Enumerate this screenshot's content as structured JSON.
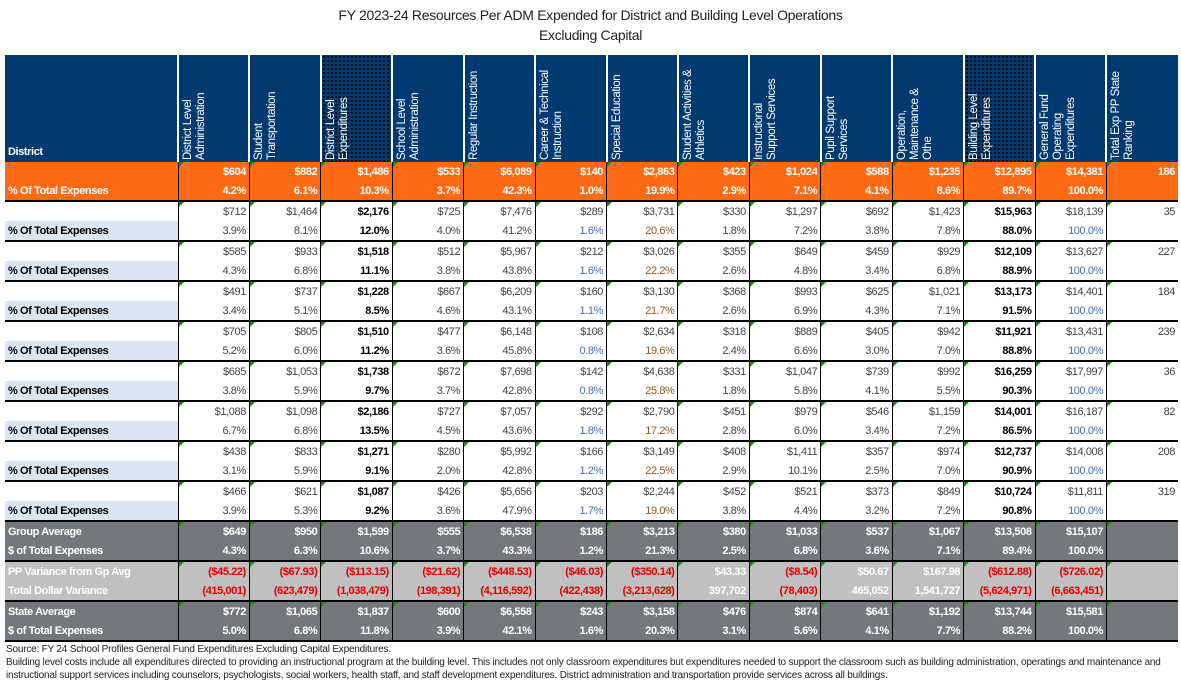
{
  "title": {
    "line1": "FY 2023-24 Resources Per ADM Expended for District and  Building Level Operations",
    "line2": "Excluding Capital"
  },
  "columns": [
    "District",
    "District Level Administration",
    "Student Transportation",
    "District Level Expenditures",
    "School Level Administration",
    "Regular Instruction",
    "Career & Technical Instruction",
    "Special Education",
    "Student Activities & Athletics",
    "Instructional Support Services",
    "Pupil Support Services",
    "Operation, Maintenance & Othe",
    "Building Level Expenditures",
    "General Fund Operating Expenditures",
    "Total Exp PP State Ranking"
  ],
  "highlight_row": {
    "label": "",
    "pct_label": "% Of Total Expenses",
    "values": [
      "$604",
      "$882",
      "$1,486",
      "$533",
      "$6,089",
      "$140",
      "$2,863",
      "$423",
      "$1,024",
      "$588",
      "$1,235",
      "$12,895",
      "$14,381"
    ],
    "pcts": [
      "4.2%",
      "6.1%",
      "10.3%",
      "3.7%",
      "42.3%",
      "1.0%",
      "19.9%",
      "2.9%",
      "7.1%",
      "4.1%",
      "8.6%",
      "89.7%",
      "100.0%"
    ],
    "rank": "186"
  },
  "district_rows": [
    {
      "pct_label": "% Of Total Expenses",
      "values": [
        "$712",
        "$1,464",
        "$2,176",
        "$725",
        "$7,476",
        "$289",
        "$3,731",
        "$330",
        "$1,297",
        "$692",
        "$1,423",
        "$15,963",
        "$18,139"
      ],
      "pcts": [
        "3.9%",
        "8.1%",
        "12.0%",
        "4.0%",
        "41.2%",
        "1.6%",
        "20.6%",
        "1.8%",
        "7.2%",
        "3.8%",
        "7.8%",
        "88.0%",
        "100.0%"
      ],
      "rank": "35"
    },
    {
      "pct_label": "% Of Total Expenses",
      "values": [
        "$585",
        "$933",
        "$1,518",
        "$512",
        "$5,967",
        "$212",
        "$3,026",
        "$355",
        "$649",
        "$459",
        "$929",
        "$12,109",
        "$13,627"
      ],
      "pcts": [
        "4.3%",
        "6.8%",
        "11.1%",
        "3.8%",
        "43.8%",
        "1.6%",
        "22.2%",
        "2.6%",
        "4.8%",
        "3.4%",
        "6.8%",
        "88.9%",
        "100.0%"
      ],
      "rank": "227"
    },
    {
      "pct_label": "% Of Total Expenses",
      "values": [
        "$491",
        "$737",
        "$1,228",
        "$667",
        "$6,209",
        "$160",
        "$3,130",
        "$368",
        "$993",
        "$625",
        "$1,021",
        "$13,173",
        "$14,401"
      ],
      "pcts": [
        "3.4%",
        "5.1%",
        "8.5%",
        "4.6%",
        "43.1%",
        "1.1%",
        "21.7%",
        "2.6%",
        "6.9%",
        "4.3%",
        "7.1%",
        "91.5%",
        "100.0%"
      ],
      "rank": "184"
    },
    {
      "pct_label": "% Of Total Expenses",
      "values": [
        "$705",
        "$805",
        "$1,510",
        "$477",
        "$6,148",
        "$108",
        "$2,634",
        "$318",
        "$889",
        "$405",
        "$942",
        "$11,921",
        "$13,431"
      ],
      "pcts": [
        "5.2%",
        "6.0%",
        "11.2%",
        "3.6%",
        "45.8%",
        "0.8%",
        "19.6%",
        "2.4%",
        "6.6%",
        "3.0%",
        "7.0%",
        "88.8%",
        "100.0%"
      ],
      "rank": "239"
    },
    {
      "pct_label": "% Of Total Expenses",
      "values": [
        "$685",
        "$1,053",
        "$1,738",
        "$672",
        "$7,698",
        "$142",
        "$4,638",
        "$331",
        "$1,047",
        "$739",
        "$992",
        "$16,259",
        "$17,997"
      ],
      "pcts": [
        "3.8%",
        "5.9%",
        "9.7%",
        "3.7%",
        "42.8%",
        "0.8%",
        "25.8%",
        "1.8%",
        "5.8%",
        "4.1%",
        "5.5%",
        "90.3%",
        "100.0%"
      ],
      "rank": "36"
    },
    {
      "pct_label": "% Of Total Expenses",
      "values": [
        "$1,088",
        "$1,098",
        "$2,186",
        "$727",
        "$7,057",
        "$292",
        "$2,790",
        "$451",
        "$979",
        "$546",
        "$1,159",
        "$14,001",
        "$16,187"
      ],
      "pcts": [
        "6.7%",
        "6.8%",
        "13.5%",
        "4.5%",
        "43.6%",
        "1.8%",
        "17.2%",
        "2.8%",
        "6.0%",
        "3.4%",
        "7.2%",
        "86.5%",
        "100.0%"
      ],
      "rank": "82"
    },
    {
      "pct_label": "% Of Total Expenses",
      "values": [
        "$438",
        "$833",
        "$1,271",
        "$280",
        "$5,992",
        "$166",
        "$3,149",
        "$408",
        "$1,411",
        "$357",
        "$974",
        "$12,737",
        "$14,008"
      ],
      "pcts": [
        "3.1%",
        "5.9%",
        "9.1%",
        "2.0%",
        "42.8%",
        "1.2%",
        "22.5%",
        "2.9%",
        "10.1%",
        "2.5%",
        "7.0%",
        "90.9%",
        "100.0%"
      ],
      "rank": "208"
    },
    {
      "pct_label": "% Of Total Expenses",
      "values": [
        "$466",
        "$621",
        "$1,087",
        "$426",
        "$5,656",
        "$203",
        "$2,244",
        "$452",
        "$521",
        "$373",
        "$849",
        "$10,724",
        "$11,811"
      ],
      "pcts": [
        "3.9%",
        "5.3%",
        "9.2%",
        "3.6%",
        "47.9%",
        "1.7%",
        "19.0%",
        "3.8%",
        "4.4%",
        "3.2%",
        "7.2%",
        "90.8%",
        "100.0%"
      ],
      "rank": "319"
    }
  ],
  "group_average": {
    "label": "Group Average",
    "pct_label": "$ of Total Expenses",
    "values": [
      "$649",
      "$950",
      "$1,599",
      "$555",
      "$6,538",
      "$186",
      "$3,213",
      "$380",
      "$1,033",
      "$537",
      "$1,067",
      "$13,508",
      "$15,107"
    ],
    "pcts": [
      "4.3%",
      "6.3%",
      "10.6%",
      "3.7%",
      "43.3%",
      "1.2%",
      "21.3%",
      "2.5%",
      "6.8%",
      "3.6%",
      "7.1%",
      "89.4%",
      "100.0%"
    ]
  },
  "variance": {
    "label": "PP Variance from Gp Avg",
    "pct_label": "Total Dollar Variance",
    "values": [
      "($45.22)",
      "($67.93)",
      "($113.15)",
      "($21.62)",
      "($448.53)",
      "($46.03)",
      "($350.14)",
      "$43.33",
      "($8.54)",
      "$50.67",
      "$167.98",
      "($612.88)",
      "($726.02)"
    ],
    "pcts": [
      "(415,001)",
      "(623,479)",
      "(1,038,479)",
      "(198,391)",
      "(4,116,592)",
      "(422,438)",
      "(3,213,628)",
      "397,702",
      "(78,403)",
      "465,052",
      "1,541,727",
      "(5,624,971)",
      "(6,663,451)"
    ]
  },
  "state_average": {
    "label": "State Average",
    "pct_label": "$ of Total Expenses",
    "values": [
      "$772",
      "$1,065",
      "$1,837",
      "$600",
      "$6,558",
      "$243",
      "$3,158",
      "$476",
      "$874",
      "$641",
      "$1,192",
      "$13,744",
      "$15,581"
    ],
    "pcts": [
      "5.0%",
      "6.8%",
      "11.8%",
      "3.9%",
      "42.1%",
      "1.6%",
      "20.3%",
      "3.1%",
      "5.6%",
      "4.1%",
      "7.7%",
      "88.2%",
      "100.0%"
    ]
  },
  "footer": {
    "source": "Source: FY 24 School Profiles General Fund Expenditures Excluding Capital Expenditures.",
    "note": "Building level costs include all expenditures directed to providing an instructional program at the building level. This includes not only classroom expenditures but expenditures needed to support the classroom such as building administration, operatings and maintenance and instructional support services including counselors, psychologists, social workers, health staff, and staff development expenditures. District administration and transportation provide services across all buildings."
  },
  "colors": {
    "header": "#003a70",
    "highlight": "#ff6a13",
    "summary_gray": "#75787b",
    "variance_gray": "#c0c0c0",
    "negative": "#e00000",
    "comment_marker": "#1a8a1a"
  }
}
